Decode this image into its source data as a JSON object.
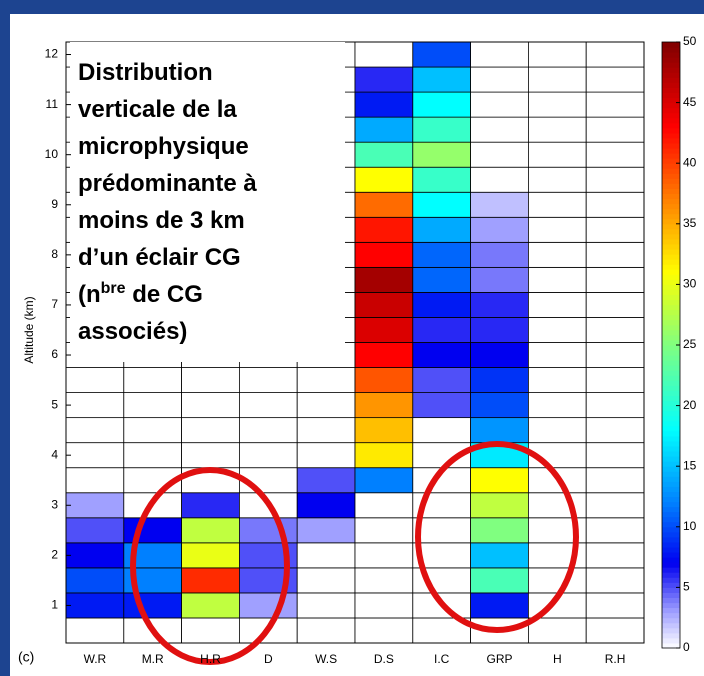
{
  "chart_data": {
    "type": "heatmap",
    "panel_label": "(c)",
    "ylabel": "Altitude (km)",
    "annotation": [
      "Distribution",
      "verticale de la",
      "microphysique",
      "prédominante à",
      "moins de 3 km",
      "d’un éclair CG",
      "(n",
      "bre",
      " de CG",
      "associés)"
    ],
    "categories": [
      "W.R",
      "M.R",
      "H.R",
      "D",
      "W.S",
      "D.S",
      "I.C",
      "GRP",
      "H",
      "R.H"
    ],
    "y": [
      0.5,
      1,
      1.5,
      2,
      2.5,
      3,
      3.5,
      4,
      4.5,
      5,
      5.5,
      6,
      6.5,
      7,
      7.5,
      8,
      8.5,
      9,
      9.5,
      10,
      10.5,
      11,
      11.5,
      12
    ],
    "values": [
      [
        0,
        0,
        0,
        0,
        0,
        0,
        0,
        0,
        0,
        0
      ],
      [
        8,
        8,
        28,
        3,
        0,
        0,
        0,
        8,
        0,
        0
      ],
      [
        10,
        12,
        41,
        5,
        0,
        0,
        0,
        22,
        0,
        0
      ],
      [
        7,
        12,
        30,
        5,
        0,
        0,
        0,
        15,
        0,
        0
      ],
      [
        5,
        7,
        28,
        4,
        3,
        0,
        0,
        25,
        0,
        0
      ],
      [
        3,
        0,
        6,
        0,
        7,
        0,
        0,
        28,
        0,
        0
      ],
      [
        0,
        0,
        0,
        0,
        5,
        12,
        0,
        31,
        0,
        0
      ],
      [
        0,
        0,
        0,
        0,
        0,
        32,
        0,
        17,
        0,
        0
      ],
      [
        0,
        0,
        0,
        0,
        0,
        34,
        0,
        13,
        0,
        0
      ],
      [
        0,
        0,
        0,
        0,
        0,
        36,
        5,
        10,
        0,
        0
      ],
      [
        0,
        0,
        0,
        0,
        0,
        39,
        5,
        9,
        0,
        0
      ],
      [
        0,
        0,
        0,
        0,
        0,
        43,
        7,
        7,
        0,
        0
      ],
      [
        0,
        0,
        0,
        0,
        0,
        45,
        6,
        6,
        0,
        0
      ],
      [
        0,
        0,
        0,
        0,
        0,
        46,
        8,
        6,
        0,
        0
      ],
      [
        0,
        0,
        0,
        0,
        0,
        48,
        11,
        4,
        0,
        0
      ],
      [
        0,
        0,
        0,
        0,
        0,
        43,
        11,
        4,
        0,
        0
      ],
      [
        0,
        0,
        0,
        0,
        0,
        42,
        14,
        3,
        0,
        0
      ],
      [
        0,
        0,
        0,
        0,
        0,
        38,
        18,
        2,
        0,
        0
      ],
      [
        0,
        0,
        0,
        0,
        0,
        31,
        21,
        0,
        0,
        0
      ],
      [
        0,
        0,
        0,
        0,
        0,
        22,
        26,
        0,
        0,
        0
      ],
      [
        0,
        0,
        0,
        0,
        0,
        14,
        21,
        0,
        0,
        0
      ],
      [
        0,
        0,
        0,
        0,
        0,
        8,
        18,
        0,
        0,
        0
      ],
      [
        0,
        0,
        0,
        0,
        0,
        6,
        15,
        0,
        0,
        0
      ],
      [
        0,
        0,
        0,
        0,
        0,
        0,
        10,
        0,
        0,
        0
      ]
    ],
    "ylim": [
      0.25,
      12.25
    ],
    "yticks": [
      1,
      2,
      3,
      4,
      5,
      6,
      7,
      8,
      9,
      10,
      11,
      12
    ],
    "colormap": "jet",
    "clim": [
      0,
      50
    ],
    "cticks": [
      0,
      5,
      10,
      15,
      20,
      25,
      30,
      35,
      40,
      45,
      50
    ]
  }
}
